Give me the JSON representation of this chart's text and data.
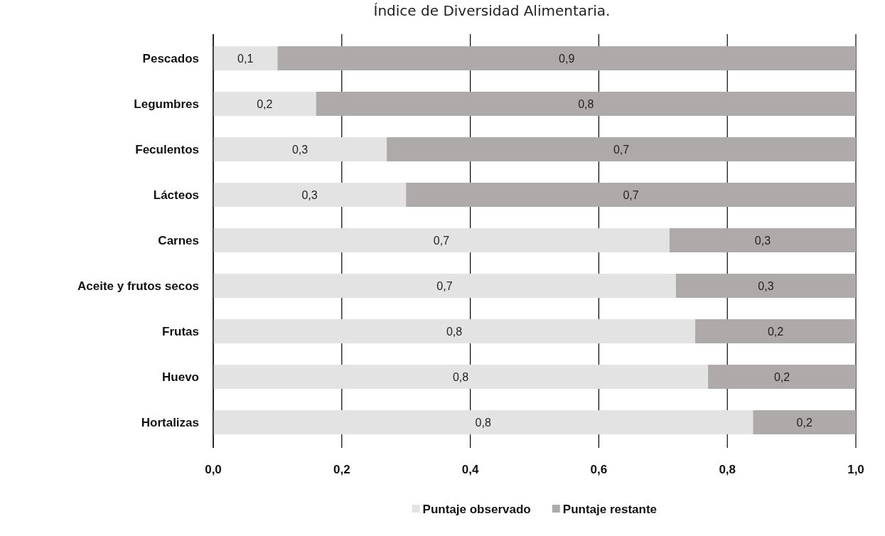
{
  "chart_data": {
    "type": "bar",
    "orientation": "horizontal",
    "stacked": true,
    "title": "Índice de Diversidad Alimentaria.",
    "categories": [
      "Pescados",
      "Legumbres",
      "Feculentos",
      "Lácteos",
      "Carnes",
      "Aceite y frutos secos",
      "Frutas",
      "Huevo",
      "Hortalizas"
    ],
    "series": [
      {
        "name": "Puntaje observado",
        "color": "#e3e3e3",
        "values": [
          0.1,
          0.16,
          0.27,
          0.3,
          0.71,
          0.72,
          0.75,
          0.77,
          0.84
        ],
        "value_labels": [
          "0,1",
          "0,2",
          "0,3",
          "0,3",
          "0,7",
          "0,7",
          "0,8",
          "0,8",
          "0,8"
        ]
      },
      {
        "name": "Puntaje restante",
        "color": "#aeaaaa",
        "values": [
          0.9,
          0.84,
          0.73,
          0.7,
          0.29,
          0.28,
          0.25,
          0.23,
          0.16
        ],
        "value_labels": [
          "0,9",
          "0,8",
          "0,7",
          "0,7",
          "0,3",
          "0,3",
          "0,2",
          "0,2",
          "0,2"
        ]
      }
    ],
    "xlim": [
      0,
      1
    ],
    "xticks": [
      {
        "value": 0,
        "label": "0,0"
      },
      {
        "value": 0.2,
        "label": "0,2"
      },
      {
        "value": 0.4,
        "label": "0,4"
      },
      {
        "value": 0.6,
        "label": "0,6"
      },
      {
        "value": 0.8,
        "label": "0,8"
      },
      {
        "value": 1,
        "label": "1,0"
      }
    ],
    "grid": "x",
    "legend": "bottom"
  }
}
